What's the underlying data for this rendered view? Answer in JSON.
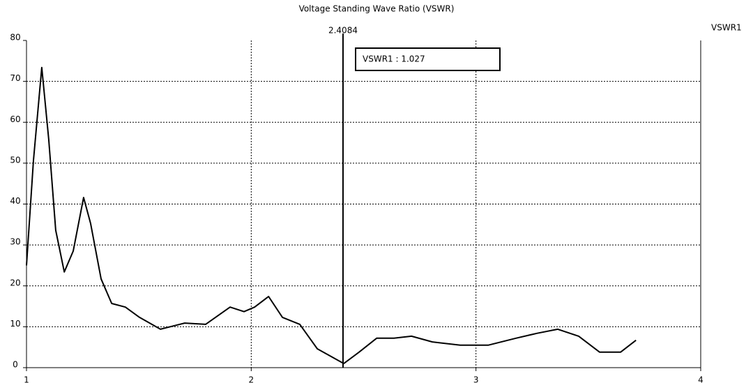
{
  "chart_data": {
    "type": "line",
    "title": "Voltage Standing Wave Ratio (VSWR)",
    "x": [
      1.0,
      1.031,
      1.068,
      1.099,
      1.13,
      1.168,
      1.208,
      1.254,
      1.285,
      1.332,
      1.379,
      1.44,
      1.503,
      1.596,
      1.704,
      1.797,
      1.906,
      1.968,
      2.015,
      2.077,
      2.139,
      2.216,
      2.294,
      2.412,
      2.48,
      2.558,
      2.635,
      2.713,
      2.806,
      2.93,
      3.054,
      3.178,
      3.271,
      3.364,
      3.457,
      3.55,
      3.644,
      3.712
    ],
    "series": [
      {
        "name": "VSWR1",
        "color": "#000000",
        "values": [
          25,
          50.7,
          73.4,
          55.8,
          33.6,
          23.4,
          28.5,
          41.6,
          35.3,
          21.7,
          15.7,
          14.8,
          12.3,
          9.4,
          10.9,
          10.6,
          14.8,
          13.7,
          14.8,
          17.4,
          12.3,
          10.6,
          4.6,
          1.0,
          3.8,
          7.2,
          7.2,
          7.7,
          6.3,
          5.5,
          5.5,
          7.2,
          8.4,
          9.4,
          7.7,
          3.8,
          3.8,
          6.7
        ]
      }
    ],
    "xlim": [
      1,
      4
    ],
    "xticks": [
      1,
      2,
      3,
      4
    ],
    "ylim": [
      0,
      80
    ],
    "yticks": [
      0,
      10,
      20,
      30,
      40,
      50,
      60,
      70,
      80
    ],
    "grid": true,
    "legend": "right",
    "marker": {
      "x": 2.4084,
      "readout": "VSWR1 : 1.027"
    }
  }
}
